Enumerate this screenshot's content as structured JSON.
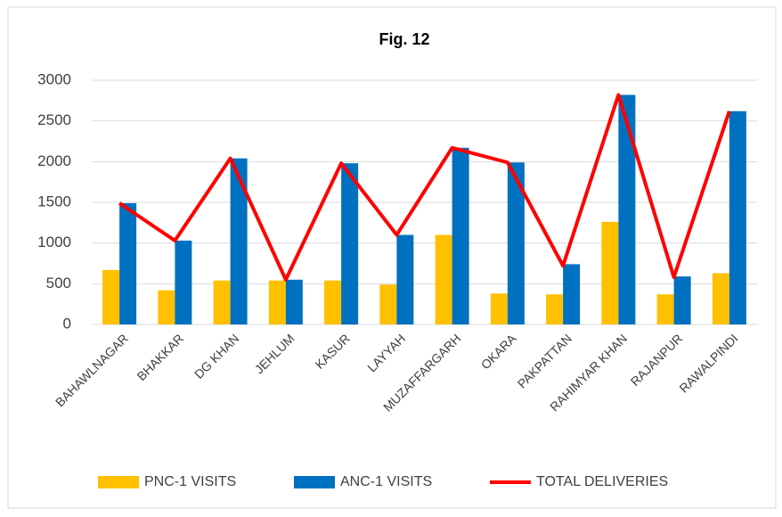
{
  "chart_data": {
    "type": "bar_line",
    "title": "Fig. 12",
    "categories": [
      "BAHAWLNAGAR",
      "BHAKKAR",
      "DG KHAN",
      "JEHLUM",
      "KASUR",
      "LAYYAH",
      "MUZAFFARGARH",
      "OKARA",
      "PAKPATTAN",
      "RAHIMYAR KHAN",
      "RAJANPUR",
      "RAWALPINDI"
    ],
    "series": [
      {
        "name": "PNC-1 VISITS",
        "color": "#ffc000",
        "kind": "bar",
        "values": [
          670,
          420,
          540,
          540,
          540,
          490,
          1100,
          380,
          370,
          1260,
          370,
          630
        ]
      },
      {
        "name": "ANC-1 VISITS",
        "color": "#0070c0",
        "kind": "bar",
        "values": [
          1490,
          1030,
          2040,
          550,
          1980,
          1100,
          2170,
          1990,
          740,
          2820,
          590,
          2620
        ]
      },
      {
        "name": "TOTAL DELIVERIES",
        "color": "#ff0000",
        "kind": "line",
        "values": [
          1490,
          1030,
          2040,
          550,
          1980,
          1100,
          2170,
          1990,
          720,
          2820,
          580,
          2620
        ]
      }
    ],
    "ylim": [
      0,
      3000
    ],
    "yticks": [
      0,
      500,
      1000,
      1500,
      2000,
      2500,
      3000
    ],
    "grid": true,
    "legend": "bottom"
  }
}
